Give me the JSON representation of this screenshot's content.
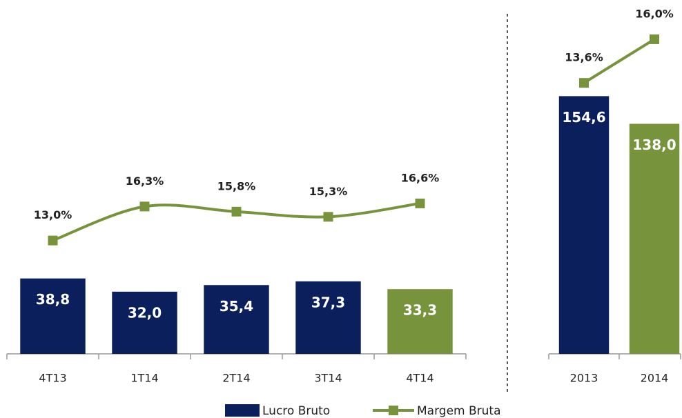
{
  "chart_data": [
    {
      "type": "bar",
      "categories": [
        "4T13",
        "1T14",
        "2T14",
        "3T14",
        "4T14"
      ],
      "series": [
        {
          "name": "Lucro Bruto",
          "color": "#0b1f5c",
          "colors": [
            "#0b1f5c",
            "#0b1f5c",
            "#0b1f5c",
            "#0b1f5c",
            "#77933c"
          ],
          "values": [
            38.8,
            32.0,
            35.4,
            37.3,
            33.3
          ],
          "value_labels": [
            "38,8",
            "32,0",
            "35,4",
            "37,3",
            "33,3"
          ]
        },
        {
          "name": "Margem Bruta",
          "type": "line",
          "axis": "y2",
          "color": "#77933c",
          "smooth": true,
          "values": [
            13.0,
            16.3,
            15.8,
            15.3,
            16.6
          ],
          "value_labels": [
            "13,0%",
            "16,3%",
            "15,8%",
            "15,3%",
            "16,6%"
          ]
        }
      ],
      "ylim": [
        0,
        175
      ],
      "y2lim": [
        2,
        35
      ]
    },
    {
      "type": "bar",
      "categories": [
        "2013",
        "2014"
      ],
      "series": [
        {
          "colors": [
            "#0b1f5c",
            "#77933c"
          ],
          "values": [
            154.6,
            138.0
          ],
          "value_labels": [
            "154,6",
            "138,0"
          ]
        },
        {
          "type": "line",
          "axis": "y2",
          "color": "#77933c",
          "smooth": false,
          "values": [
            13.6,
            16.0
          ],
          "value_labels": [
            "13,6%",
            "16,0%"
          ]
        }
      ],
      "ylim": [
        0,
        204
      ],
      "y2lim": [
        -1.3,
        17.4
      ]
    }
  ]
}
